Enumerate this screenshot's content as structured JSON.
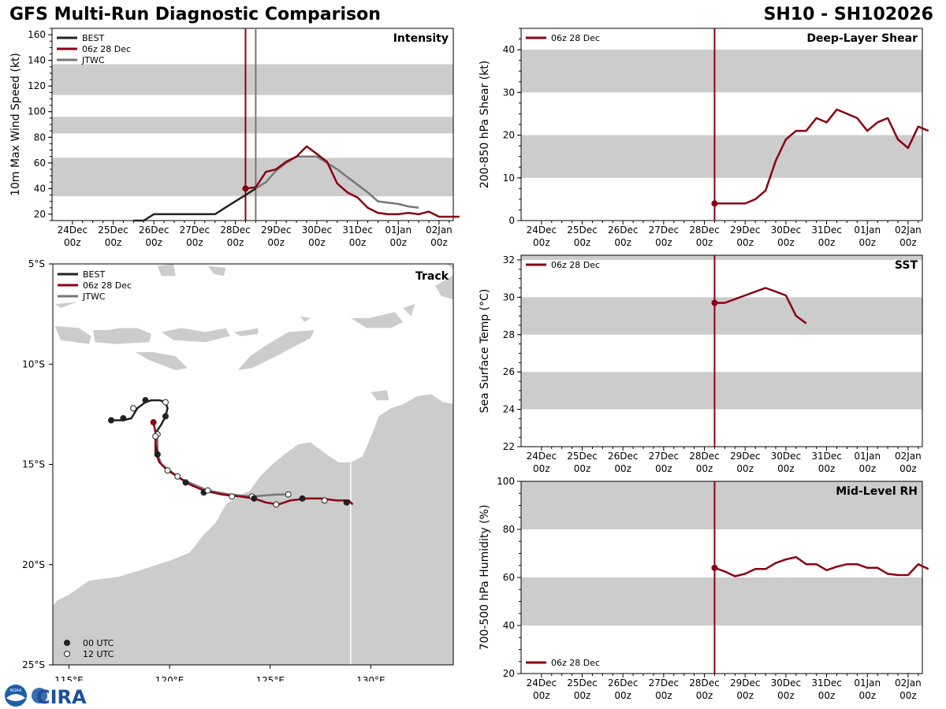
{
  "header": {
    "title": "GFS Multi-Run Diagnostic Comparison",
    "storm_id": "SH10 - SH102026"
  },
  "logo": {
    "text": "CIRA",
    "badge": "NOAA"
  },
  "colors": {
    "best": "#222222",
    "gfs": "#8b0012",
    "jtwc": "#777777",
    "band": "#cccccc",
    "land": "#cccccc"
  },
  "time_axis": {
    "ticks": [
      {
        "day": "24Dec",
        "hour": "00z",
        "t": 0
      },
      {
        "day": "25Dec",
        "hour": "00z",
        "t": 1
      },
      {
        "day": "26Dec",
        "hour": "00z",
        "t": 2
      },
      {
        "day": "27Dec",
        "hour": "00z",
        "t": 3
      },
      {
        "day": "28Dec",
        "hour": "00z",
        "t": 4
      },
      {
        "day": "29Dec",
        "hour": "00z",
        "t": 5
      },
      {
        "day": "30Dec",
        "hour": "00z",
        "t": 6
      },
      {
        "day": "31Dec",
        "hour": "00z",
        "t": 7
      },
      {
        "day": "01Jan",
        "hour": "00z",
        "t": 8
      },
      {
        "day": "02Jan",
        "hour": "00z",
        "t": 9
      }
    ],
    "range": [
      -0.5,
      9.35
    ]
  },
  "chart_data": [
    {
      "id": "intensity",
      "type": "line",
      "title": "Intensity",
      "ylabel": "10m Max Wind Speed (kt)",
      "ylim": [
        15,
        165
      ],
      "yticks": [
        20,
        40,
        60,
        80,
        100,
        120,
        140,
        160
      ],
      "bands": [
        [
          34,
          64
        ],
        [
          83,
          96
        ],
        [
          113,
          137
        ]
      ],
      "init_time": 4.25,
      "jtwc_time": 4.5,
      "legend": [
        "BEST",
        "06z 28 Dec",
        "JTWC"
      ],
      "series": [
        {
          "name": "BEST",
          "x": [
            1.5,
            1.75,
            2.0,
            2.25,
            2.5,
            2.75,
            3.0,
            3.25,
            3.5,
            3.75,
            4.0,
            4.25,
            4.5
          ],
          "y": [
            15,
            15,
            20,
            20,
            20,
            20,
            20,
            20,
            20,
            25,
            30,
            35,
            40
          ]
        },
        {
          "name": "06z 28 Dec",
          "x": [
            4.25,
            4.5,
            4.75,
            5.0,
            5.25,
            5.5,
            5.75,
            6.0,
            6.25,
            6.5,
            6.75,
            7.0,
            7.25,
            7.5,
            7.75,
            8.0,
            8.25,
            8.5,
            8.75,
            9.0,
            9.25,
            9.5
          ],
          "y": [
            40,
            41,
            53,
            55,
            61,
            65,
            73,
            67,
            61,
            44,
            37,
            33,
            25,
            21,
            20,
            20,
            21,
            20,
            22,
            18,
            18,
            18
          ]
        },
        {
          "name": "JTWC",
          "x": [
            4.5,
            4.75,
            5.0,
            5.25,
            5.5,
            5.75,
            6.0,
            6.25,
            6.5,
            6.75,
            7.0,
            7.25,
            7.5,
            7.75,
            8.0,
            8.25,
            8.5
          ],
          "y": [
            40,
            45,
            54,
            60,
            65,
            65,
            65,
            60,
            55,
            49,
            43,
            37,
            30,
            29,
            28,
            26,
            25
          ]
        }
      ]
    },
    {
      "id": "shear",
      "type": "line",
      "title": "Deep-Layer Shear",
      "ylabel": "200-850 hPa Shear (kt)",
      "ylim": [
        0,
        45
      ],
      "yticks": [
        0,
        10,
        20,
        30,
        40
      ],
      "bands": [
        [
          10,
          20
        ],
        [
          30,
          40
        ]
      ],
      "init_time": 4.25,
      "legend": [
        "06z 28 Dec"
      ],
      "series": [
        {
          "name": "06z 28 Dec",
          "x": [
            4.25,
            4.5,
            4.75,
            5.0,
            5.25,
            5.5,
            5.75,
            6.0,
            6.25,
            6.5,
            6.75,
            7.0,
            7.25,
            7.5,
            7.75,
            8.0,
            8.25,
            8.5,
            8.75,
            9.0,
            9.25,
            9.5
          ],
          "y": [
            4,
            4,
            4,
            4,
            5,
            7,
            14,
            19,
            21,
            21,
            24,
            23,
            26,
            25,
            24,
            21,
            23,
            24,
            19,
            17,
            22,
            21
          ]
        }
      ]
    },
    {
      "id": "sst",
      "type": "line",
      "title": "SST",
      "ylabel": "Sea Surface Temp (°C)",
      "ylim": [
        22,
        32.25
      ],
      "yticks": [
        22,
        24,
        26,
        28,
        30,
        32
      ],
      "bands": [
        [
          24,
          26
        ],
        [
          28,
          30
        ],
        [
          32,
          32.25
        ]
      ],
      "init_time": 4.25,
      "legend": [
        "06z 28 Dec"
      ],
      "series": [
        {
          "name": "06z 28 Dec",
          "x": [
            4.25,
            4.5,
            4.75,
            5.0,
            5.25,
            5.5,
            5.75,
            6.0,
            6.25,
            6.5
          ],
          "y": [
            29.7,
            29.7,
            29.9,
            30.1,
            30.3,
            30.5,
            30.3,
            30.1,
            29.0,
            28.6
          ]
        }
      ]
    },
    {
      "id": "rh",
      "type": "line",
      "title": "Mid-Level RH",
      "ylabel": "700-500 hPa Humidity (%)",
      "ylim": [
        20,
        100
      ],
      "yticks": [
        20,
        40,
        60,
        80,
        100
      ],
      "bands": [
        [
          40,
          60
        ],
        [
          80,
          100
        ]
      ],
      "init_time": 4.25,
      "legend": [
        "06z 28 Dec"
      ],
      "series": [
        {
          "name": "06z 28 Dec",
          "x": [
            4.25,
            4.5,
            4.75,
            5.0,
            5.25,
            5.5,
            5.75,
            6.0,
            6.25,
            6.5,
            6.75,
            7.0,
            7.25,
            7.5,
            7.75,
            8.0,
            8.25,
            8.5,
            8.75,
            9.0,
            9.25,
            9.5
          ],
          "y": [
            64,
            62.5,
            60.5,
            61.5,
            63.5,
            63.5,
            66,
            67.5,
            68.5,
            65.5,
            65.5,
            63,
            64.5,
            65.5,
            65.5,
            64,
            64,
            61.5,
            61,
            61,
            65.5,
            63.5
          ]
        }
      ]
    },
    {
      "id": "track",
      "type": "scatter",
      "title": "Track",
      "xlim": [
        114.2,
        134.1
      ],
      "ylim": [
        -25,
        -5
      ],
      "xticks": [
        {
          "v": 115,
          "label": "115°E"
        },
        {
          "v": 120,
          "label": "120°E"
        },
        {
          "v": 125,
          "label": "125°E"
        },
        {
          "v": 130,
          "label": "130°E"
        }
      ],
      "yticks": [
        {
          "v": -5,
          "label": "5°S"
        },
        {
          "v": -10,
          "label": "10°S"
        },
        {
          "v": -15,
          "label": "15°S"
        },
        {
          "v": -20,
          "label": "20°S"
        },
        {
          "v": -25,
          "label": "25°S"
        }
      ],
      "legend": [
        "BEST",
        "06z 28 Dec",
        "JTWC"
      ],
      "marker_legend": [
        "00 UTC",
        "12 UTC"
      ],
      "series": [
        {
          "name": "BEST",
          "lon": [
            117.1,
            117.7,
            118.1,
            118.4,
            118.8,
            119.1,
            119.5,
            119.8,
            119.9,
            119.8,
            119.6,
            119.4,
            119.3,
            119.3,
            119.4,
            119.5
          ],
          "lat": [
            -12.8,
            -12.8,
            -12.7,
            -12.2,
            -11.9,
            -11.8,
            -11.8,
            -11.9,
            -12.2,
            -12.6,
            -13.0,
            -13.3,
            -13.5,
            -14.0,
            -14.4,
            -14.5
          ],
          "markers": [
            {
              "lon": 117.1,
              "lat": -12.8,
              "k": "00"
            },
            {
              "lon": 117.7,
              "lat": -12.7,
              "k": "00"
            },
            {
              "lon": 118.2,
              "lat": -12.2,
              "k": "12"
            },
            {
              "lon": 118.8,
              "lat": -11.8,
              "k": "00"
            },
            {
              "lon": 119.8,
              "lat": -11.9,
              "k": "12"
            },
            {
              "lon": 119.8,
              "lat": -12.6,
              "k": "00"
            },
            {
              "lon": 119.3,
              "lat": -13.6,
              "k": "12"
            },
            {
              "lon": 119.4,
              "lat": -14.5,
              "k": "00"
            }
          ]
        },
        {
          "name": "06z 28 Dec",
          "lon": [
            119.2,
            119.3,
            119.3,
            119.5,
            119.9,
            120.4,
            121.0,
            121.7,
            122.6,
            123.5,
            124.2,
            124.8,
            125.4,
            126.0,
            126.8,
            127.5,
            128.3,
            128.9,
            129.1
          ],
          "lat": [
            -12.9,
            -13.4,
            -14.4,
            -14.9,
            -15.3,
            -15.6,
            -16.0,
            -16.3,
            -16.5,
            -16.6,
            -16.7,
            -16.9,
            -17.0,
            -16.8,
            -16.7,
            -16.7,
            -16.8,
            -16.8,
            -17.0
          ],
          "markers": [
            {
              "lon": 119.2,
              "lat": -12.9,
              "k": "init"
            }
          ]
        },
        {
          "name": "JTWC",
          "lon": [
            119.4,
            119.4,
            119.6,
            120.0,
            120.5,
            121.2,
            121.9,
            123.0,
            124.1,
            125.3,
            125.9
          ],
          "lat": [
            -13.5,
            -14.5,
            -15.0,
            -15.3,
            -15.7,
            -16.0,
            -16.3,
            -16.5,
            -16.6,
            -16.5,
            -16.5
          ],
          "markers": [
            {
              "lon": 119.4,
              "lat": -13.5,
              "k": "12"
            },
            {
              "lon": 119.4,
              "lat": -14.5,
              "k": "00"
            },
            {
              "lon": 119.9,
              "lat": -15.3,
              "k": "12"
            },
            {
              "lon": 120.4,
              "lat": -15.6,
              "k": "12"
            },
            {
              "lon": 120.8,
              "lat": -15.9,
              "k": "00"
            },
            {
              "lon": 121.7,
              "lat": -16.4,
              "k": "00"
            },
            {
              "lon": 121.9,
              "lat": -16.3,
              "k": "12"
            },
            {
              "lon": 123.1,
              "lat": -16.6,
              "k": "12"
            },
            {
              "lon": 124.1,
              "lat": -16.6,
              "k": "12"
            },
            {
              "lon": 124.2,
              "lat": -16.7,
              "k": "00"
            },
            {
              "lon": 125.3,
              "lat": -17.0,
              "k": "12"
            },
            {
              "lon": 125.9,
              "lat": -16.5,
              "k": "12"
            },
            {
              "lon": 126.6,
              "lat": -16.7,
              "k": "00"
            },
            {
              "lon": 127.7,
              "lat": -16.8,
              "k": "12"
            },
            {
              "lon": 128.8,
              "lat": -16.9,
              "k": "00"
            }
          ]
        }
      ]
    }
  ]
}
